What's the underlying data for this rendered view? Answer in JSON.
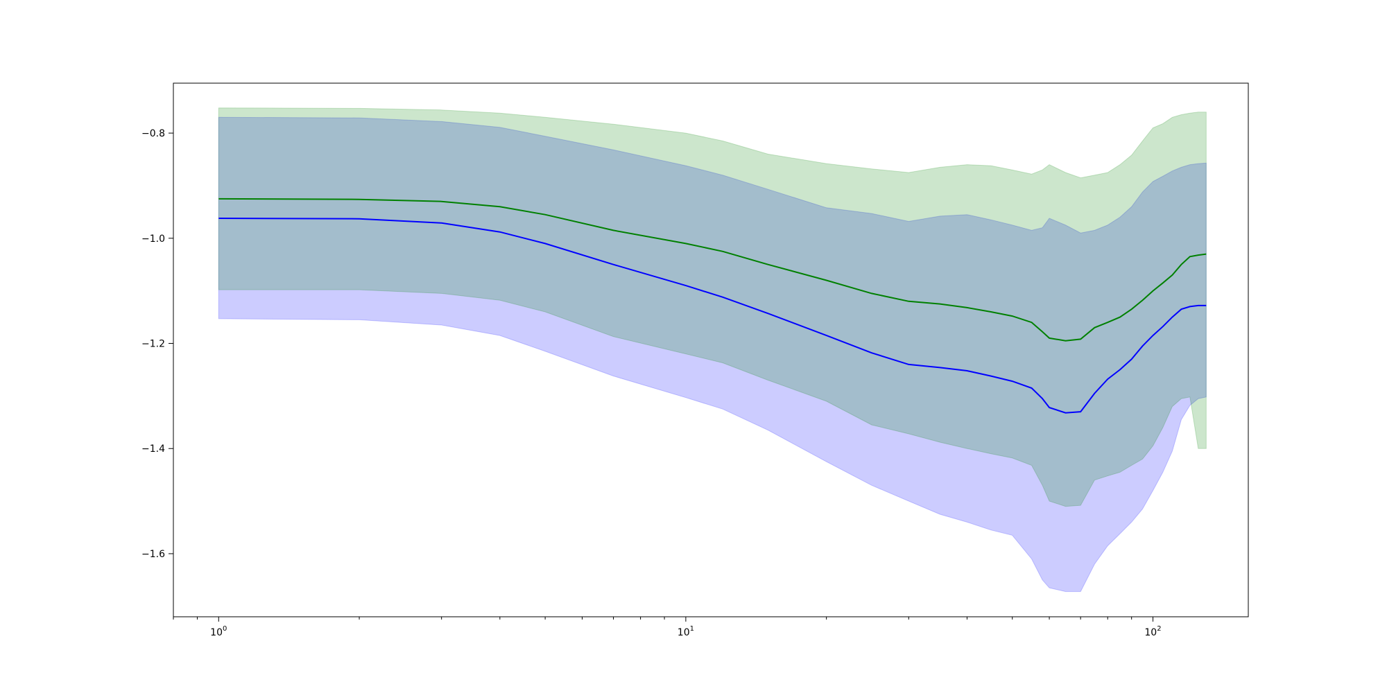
{
  "chart_data": {
    "type": "area",
    "title": "",
    "xlabel": "",
    "ylabel": "",
    "xscale": "log",
    "xlim": [
      0.8,
      160
    ],
    "ylim": [
      -1.72,
      -0.705
    ],
    "grid": false,
    "legend": "none",
    "x_ticks_major": [
      {
        "value": 1,
        "base": "10",
        "exp": "0"
      },
      {
        "value": 10,
        "base": "10",
        "exp": "1"
      },
      {
        "value": 100,
        "base": "10",
        "exp": "2"
      }
    ],
    "y_ticks": [
      {
        "value": -0.8,
        "label": "−0.8"
      },
      {
        "value": -1.0,
        "label": "−1.0"
      },
      {
        "value": -1.2,
        "label": "−1.2"
      },
      {
        "value": -1.4,
        "label": "−1.4"
      },
      {
        "value": -1.6,
        "label": "−1.6"
      }
    ],
    "colors": {
      "green_line": "#008000",
      "blue_line": "#0000ff",
      "green_band": "#008000",
      "blue_band": "#0000ff"
    },
    "bands": [
      {
        "color_key": "blue_band",
        "opacity": 0.2,
        "points": [
          {
            "x": 1,
            "lo": -1.153,
            "hi": -0.77
          },
          {
            "x": 2,
            "lo": -1.155,
            "hi": -0.771
          },
          {
            "x": 3,
            "lo": -1.165,
            "hi": -0.778
          },
          {
            "x": 4,
            "lo": -1.185,
            "hi": -0.789
          },
          {
            "x": 5,
            "lo": -1.215,
            "hi": -0.806
          },
          {
            "x": 7,
            "lo": -1.262,
            "hi": -0.832
          },
          {
            "x": 10,
            "lo": -1.303,
            "hi": -0.862
          },
          {
            "x": 12,
            "lo": -1.325,
            "hi": -0.88
          },
          {
            "x": 15,
            "lo": -1.365,
            "hi": -0.907
          },
          {
            "x": 20,
            "lo": -1.425,
            "hi": -0.942
          },
          {
            "x": 25,
            "lo": -1.47,
            "hi": -0.953
          },
          {
            "x": 30,
            "lo": -1.5,
            "hi": -0.968
          },
          {
            "x": 35,
            "lo": -1.525,
            "hi": -0.958
          },
          {
            "x": 40,
            "lo": -1.54,
            "hi": -0.955
          },
          {
            "x": 45,
            "lo": -1.555,
            "hi": -0.965
          },
          {
            "x": 50,
            "lo": -1.565,
            "hi": -0.975
          },
          {
            "x": 55,
            "lo": -1.61,
            "hi": -0.985
          },
          {
            "x": 58,
            "lo": -1.65,
            "hi": -0.98
          },
          {
            "x": 60,
            "lo": -1.665,
            "hi": -0.962
          },
          {
            "x": 65,
            "lo": -1.672,
            "hi": -0.975
          },
          {
            "x": 70,
            "lo": -1.672,
            "hi": -0.99
          },
          {
            "x": 75,
            "lo": -1.62,
            "hi": -0.985
          },
          {
            "x": 80,
            "lo": -1.585,
            "hi": -0.975
          },
          {
            "x": 85,
            "lo": -1.562,
            "hi": -0.96
          },
          {
            "x": 90,
            "lo": -1.54,
            "hi": -0.94
          },
          {
            "x": 95,
            "lo": -1.515,
            "hi": -0.912
          },
          {
            "x": 100,
            "lo": -1.48,
            "hi": -0.892
          },
          {
            "x": 105,
            "lo": -1.445,
            "hi": -0.882
          },
          {
            "x": 110,
            "lo": -1.405,
            "hi": -0.872
          },
          {
            "x": 115,
            "lo": -1.345,
            "hi": -0.865
          },
          {
            "x": 120,
            "lo": -1.318,
            "hi": -0.86
          },
          {
            "x": 125,
            "lo": -1.305,
            "hi": -0.858
          },
          {
            "x": 130,
            "lo": -1.302,
            "hi": -0.857
          }
        ]
      },
      {
        "color_key": "green_band",
        "opacity": 0.2,
        "points": [
          {
            "x": 1,
            "lo": -1.098,
            "hi": -0.752
          },
          {
            "x": 2,
            "lo": -1.098,
            "hi": -0.753
          },
          {
            "x": 3,
            "lo": -1.105,
            "hi": -0.756
          },
          {
            "x": 4,
            "lo": -1.118,
            "hi": -0.762
          },
          {
            "x": 5,
            "lo": -1.14,
            "hi": -0.77
          },
          {
            "x": 7,
            "lo": -1.187,
            "hi": -0.783
          },
          {
            "x": 10,
            "lo": -1.22,
            "hi": -0.8
          },
          {
            "x": 12,
            "lo": -1.237,
            "hi": -0.815
          },
          {
            "x": 15,
            "lo": -1.27,
            "hi": -0.84
          },
          {
            "x": 20,
            "lo": -1.31,
            "hi": -0.858
          },
          {
            "x": 25,
            "lo": -1.355,
            "hi": -0.868
          },
          {
            "x": 30,
            "lo": -1.372,
            "hi": -0.875
          },
          {
            "x": 35,
            "lo": -1.388,
            "hi": -0.865
          },
          {
            "x": 40,
            "lo": -1.4,
            "hi": -0.86
          },
          {
            "x": 45,
            "lo": -1.41,
            "hi": -0.862
          },
          {
            "x": 50,
            "lo": -1.418,
            "hi": -0.87
          },
          {
            "x": 55,
            "lo": -1.432,
            "hi": -0.878
          },
          {
            "x": 58,
            "lo": -1.47,
            "hi": -0.87
          },
          {
            "x": 60,
            "lo": -1.5,
            "hi": -0.86
          },
          {
            "x": 65,
            "lo": -1.51,
            "hi": -0.875
          },
          {
            "x": 70,
            "lo": -1.508,
            "hi": -0.885
          },
          {
            "x": 75,
            "lo": -1.46,
            "hi": -0.88
          },
          {
            "x": 80,
            "lo": -1.452,
            "hi": -0.875
          },
          {
            "x": 85,
            "lo": -1.445,
            "hi": -0.86
          },
          {
            "x": 90,
            "lo": -1.432,
            "hi": -0.842
          },
          {
            "x": 95,
            "lo": -1.42,
            "hi": -0.815
          },
          {
            "x": 100,
            "lo": -1.395,
            "hi": -0.79
          },
          {
            "x": 105,
            "lo": -1.36,
            "hi": -0.782
          },
          {
            "x": 110,
            "lo": -1.32,
            "hi": -0.77
          },
          {
            "x": 115,
            "lo": -1.305,
            "hi": -0.765
          },
          {
            "x": 120,
            "lo": -1.302,
            "hi": -0.762
          },
          {
            "x": 125,
            "lo": -1.4,
            "hi": -0.76
          },
          {
            "x": 130,
            "lo": -1.4,
            "hi": -0.76
          }
        ]
      }
    ],
    "series": [
      {
        "color_key": "green_line",
        "x": [
          1,
          2,
          3,
          4,
          5,
          7,
          10,
          12,
          15,
          20,
          25,
          30,
          35,
          40,
          45,
          50,
          55,
          58,
          60,
          65,
          70,
          75,
          80,
          85,
          90,
          95,
          100,
          105,
          110,
          115,
          120,
          125,
          130
        ],
        "y": [
          -0.925,
          -0.926,
          -0.93,
          -0.94,
          -0.955,
          -0.985,
          -1.01,
          -1.025,
          -1.05,
          -1.08,
          -1.105,
          -1.12,
          -1.125,
          -1.132,
          -1.14,
          -1.148,
          -1.16,
          -1.178,
          -1.19,
          -1.195,
          -1.192,
          -1.17,
          -1.16,
          -1.15,
          -1.135,
          -1.118,
          -1.1,
          -1.085,
          -1.07,
          -1.05,
          -1.035,
          -1.032,
          -1.03
        ]
      },
      {
        "color_key": "blue_line",
        "x": [
          1,
          2,
          3,
          4,
          5,
          7,
          10,
          12,
          15,
          20,
          25,
          30,
          35,
          40,
          45,
          50,
          55,
          58,
          60,
          65,
          70,
          75,
          80,
          85,
          90,
          95,
          100,
          105,
          110,
          115,
          120,
          125,
          130
        ],
        "y": [
          -0.962,
          -0.963,
          -0.971,
          -0.988,
          -1.01,
          -1.05,
          -1.09,
          -1.112,
          -1.143,
          -1.185,
          -1.218,
          -1.24,
          -1.246,
          -1.252,
          -1.262,
          -1.272,
          -1.285,
          -1.305,
          -1.322,
          -1.332,
          -1.33,
          -1.295,
          -1.268,
          -1.25,
          -1.23,
          -1.205,
          -1.185,
          -1.168,
          -1.15,
          -1.135,
          -1.13,
          -1.128,
          -1.128
        ]
      }
    ]
  }
}
